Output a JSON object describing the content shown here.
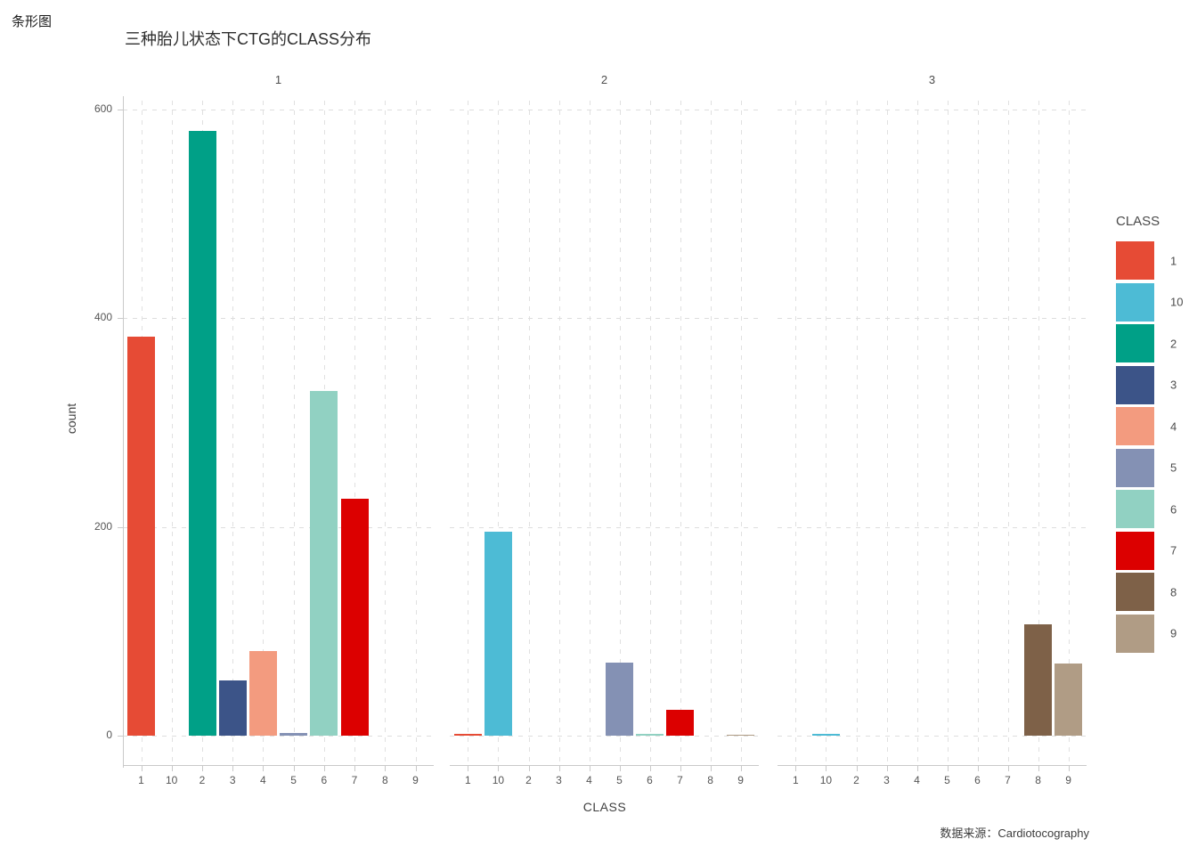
{
  "page": {
    "corner_label": "条形图",
    "caption": "数据来源：Cardiotocography"
  },
  "chart_data": {
    "type": "bar",
    "title": "三种胎儿状态下CTG的CLASS分布",
    "xlabel": "CLASS",
    "ylabel": "count",
    "ylim": [
      0,
      600
    ],
    "yticks": [
      0,
      200,
      400,
      600
    ],
    "grid": "dashed",
    "categories": [
      "1",
      "10",
      "2",
      "3",
      "4",
      "5",
      "6",
      "7",
      "8",
      "9"
    ],
    "facets": [
      {
        "label": "1",
        "values": [
          382,
          0,
          579,
          53,
          81,
          3,
          330,
          227,
          0,
          0
        ]
      },
      {
        "label": "2",
        "values": [
          2,
          195,
          0,
          0,
          0,
          70,
          2,
          25,
          0,
          1
        ]
      },
      {
        "label": "3",
        "values": [
          0,
          2,
          0,
          0,
          0,
          0,
          0,
          0,
          107,
          69
        ]
      }
    ],
    "colors": {
      "1": "#E64B35",
      "10": "#4DBBD5",
      "2": "#00A087",
      "3": "#3C5488",
      "4": "#F39B7F",
      "5": "#8491B4",
      "6": "#91D1C2",
      "7": "#DC0000",
      "8": "#7E6148",
      "9": "#B09C85"
    },
    "legend": {
      "title": "CLASS",
      "position": "right",
      "entries": [
        "1",
        "10",
        "2",
        "3",
        "4",
        "5",
        "6",
        "7",
        "8",
        "9"
      ]
    }
  }
}
